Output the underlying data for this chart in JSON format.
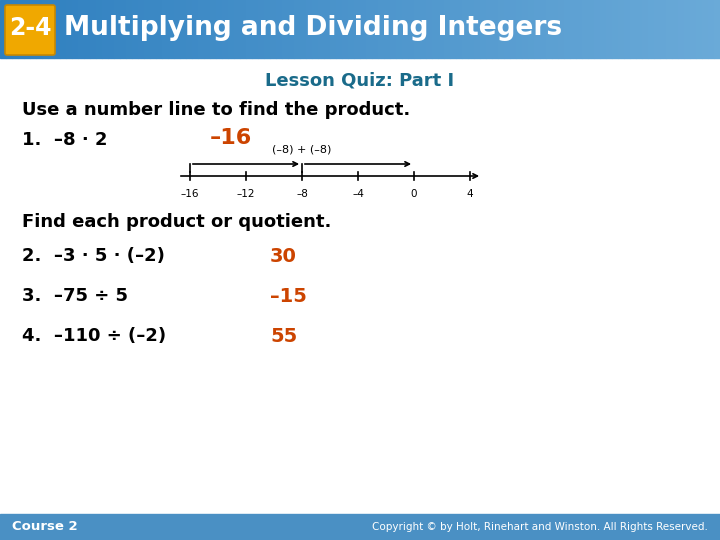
{
  "title_badge": "2-4",
  "title_text": "Multiplying and Dividing Integers",
  "subtitle": "Lesson Quiz: Part I",
  "header_bg_left": "#2E7FBF",
  "header_bg_right": "#6AAAD8",
  "badge_bg": "#F0A800",
  "badge_text_color": "#FFFFFF",
  "subtitle_color": "#1A6B8A",
  "body_bg": "#FFFFFF",
  "section1_label": "Use a number line to find the product.",
  "q1_label": "1.  –8 · 2",
  "q1_answer": "–16",
  "q1_answer_color": "#CC4400",
  "numberline_label": "(–8) + (–8)",
  "numberline_ticks": [
    "–16",
    "–12",
    "–8",
    "–4",
    "0",
    "4"
  ],
  "numberline_tick_vals": [
    -16,
    -12,
    -8,
    -4,
    0,
    4
  ],
  "section2_label": "Find each product or quotient.",
  "q2_label": "2.  –3 · 5 · (–2)",
  "q2_answer": "30",
  "q2_answer_color": "#CC4400",
  "q3_label": "3.  –75 ÷ 5",
  "q3_answer": "–15",
  "q3_answer_color": "#CC4400",
  "q4_label": "4.  –110 ÷ (–2)",
  "q4_answer": "55",
  "q4_answer_color": "#CC4400",
  "footer_left": "Course 2",
  "footer_right": "Copyright © by Holt, Rinehart and Winston. All Rights Reserved.",
  "footer_bg": "#4A90C4",
  "footer_text_color": "#FFFFFF",
  "label_color": "#000000"
}
